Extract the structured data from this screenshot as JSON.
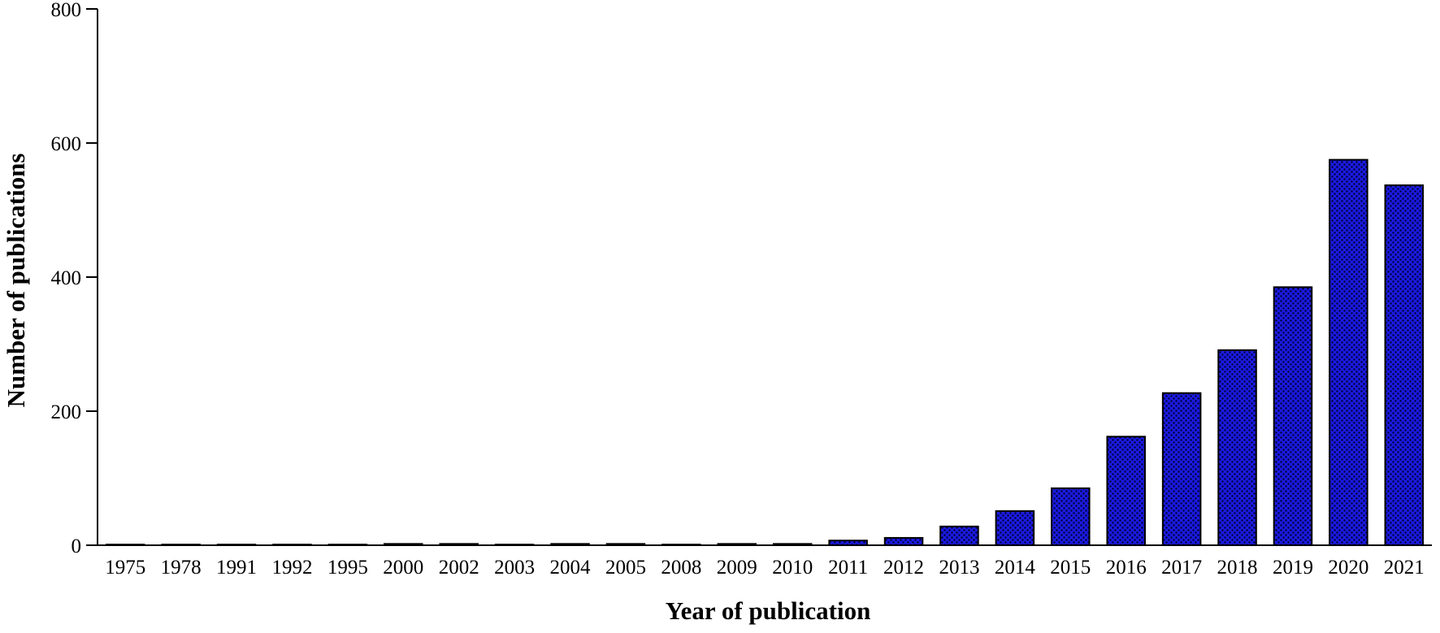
{
  "chart_data": {
    "type": "bar",
    "xlabel": "Year of publication",
    "ylabel": "Number of publications",
    "categories": [
      "1975",
      "1978",
      "1991",
      "1992",
      "1995",
      "2000",
      "2002",
      "2003",
      "2004",
      "2005",
      "2008",
      "2009",
      "2010",
      "2011",
      "2012",
      "2013",
      "2014",
      "2015",
      "2016",
      "2017",
      "2018",
      "2019",
      "2020",
      "2021"
    ],
    "values": [
      1,
      1,
      1,
      1,
      1,
      2,
      2,
      1,
      2,
      2,
      1,
      2,
      2,
      7,
      11,
      28,
      51,
      85,
      162,
      227,
      291,
      385,
      575,
      537
    ],
    "ylim": [
      0,
      800
    ],
    "yticks": [
      0,
      200,
      400,
      600,
      800
    ],
    "bar_color": "#1a1ae0",
    "bar_pattern_color": "#000033",
    "grid": false,
    "legend": false
  }
}
